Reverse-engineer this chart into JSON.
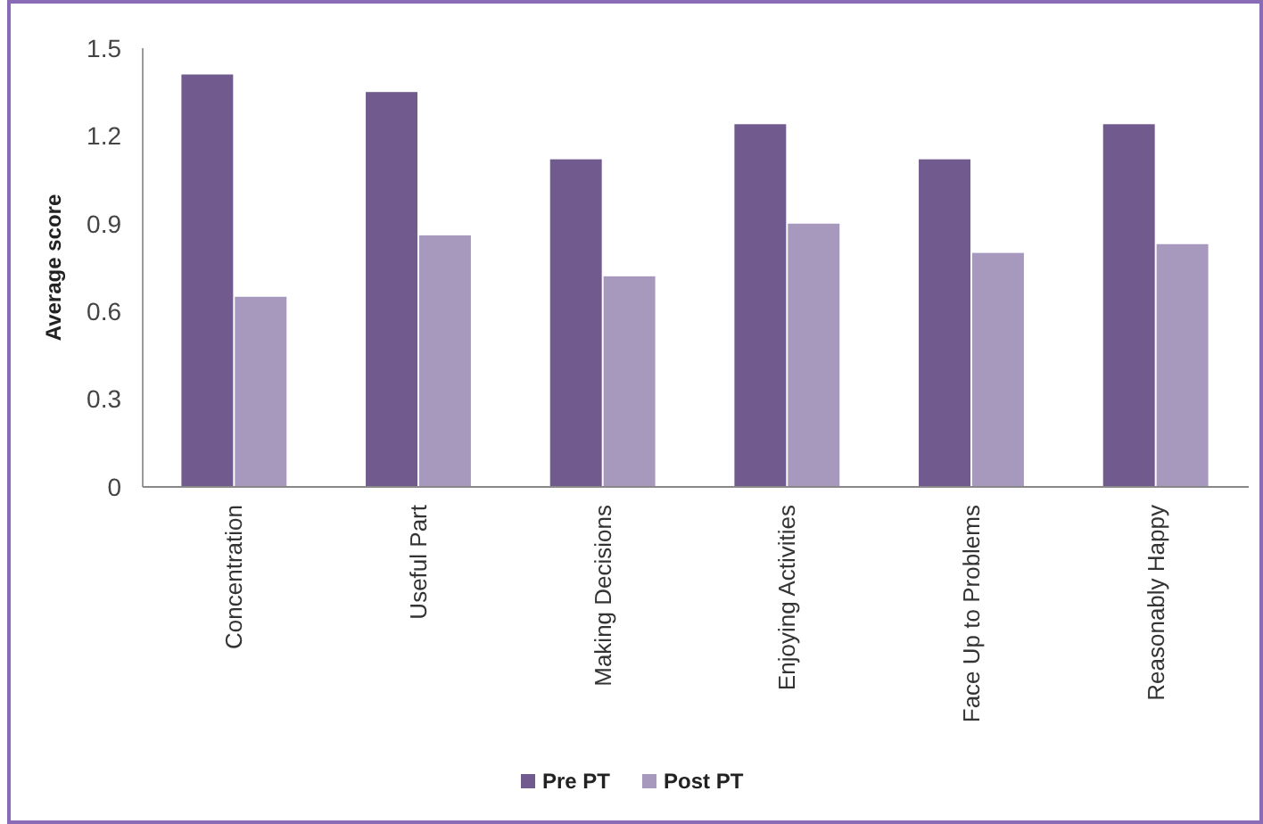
{
  "chart_data": {
    "type": "bar",
    "ylabel": "Average score",
    "categories": [
      "Concentration",
      "Useful Part",
      "Making Decisions",
      "Enjoying Activities",
      "Face Up to Problems",
      "Reasonably Happy"
    ],
    "series": [
      {
        "name": "Pre PT",
        "color": "#715a8e",
        "values": [
          1.41,
          1.35,
          1.12,
          1.24,
          1.12,
          1.24
        ]
      },
      {
        "name": "Post PT",
        "color": "#a799bd",
        "values": [
          0.65,
          0.86,
          0.72,
          0.9,
          0.8,
          0.83
        ]
      }
    ],
    "ylim": [
      0,
      1.5
    ],
    "yticks": [
      0,
      0.3,
      0.6,
      0.9,
      1.2,
      1.5
    ],
    "grid": false,
    "legend": "bottom"
  }
}
